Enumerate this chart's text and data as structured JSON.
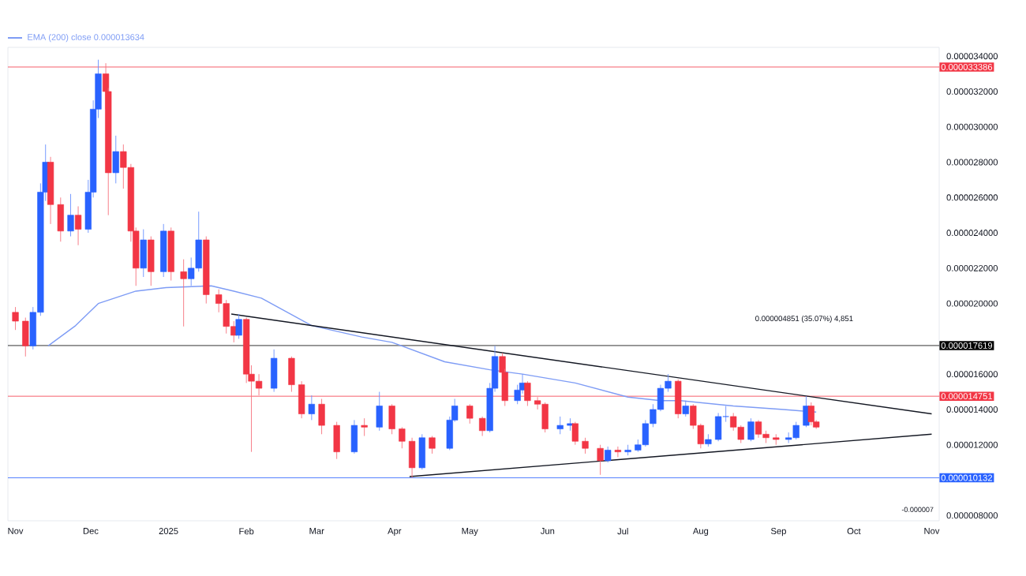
{
  "chart_data": {
    "type": "candlestick",
    "x": [
      "2024-11-01",
      "2024-11-05",
      "2024-11-08",
      "2024-11-11",
      "2024-11-13",
      "2024-11-15",
      "2024-11-19",
      "2024-11-23",
      "2024-11-26",
      "2024-11-30",
      "2024-12-02",
      "2024-12-04",
      "2024-12-07",
      "2024-12-08",
      "2024-12-11",
      "2024-12-14",
      "2024-12-17",
      "2024-12-19",
      "2024-12-22",
      "2024-12-25",
      "2024-12-30",
      "2025-01-02",
      "2025-01-07",
      "2025-01-10",
      "2025-01-13",
      "2025-01-16",
      "2025-01-21",
      "2025-01-24",
      "2025-01-27",
      "2025-01-29",
      "2025-02-01",
      "2025-02-03",
      "2025-02-06",
      "2025-02-12",
      "2025-02-19",
      "2025-02-23",
      "2025-02-27",
      "2025-03-03",
      "2025-03-09",
      "2025-03-16",
      "2025-03-20",
      "2025-03-26",
      "2025-03-31",
      "2025-04-04",
      "2025-04-08",
      "2025-04-12",
      "2025-04-16",
      "2025-04-23",
      "2025-04-25",
      "2025-05-01",
      "2025-05-06",
      "2025-05-09",
      "2025-05-11",
      "2025-05-14",
      "2025-05-15",
      "2025-05-20",
      "2025-05-22",
      "2025-05-24",
      "2025-05-28",
      "2025-05-31",
      "2025-06-06",
      "2025-06-10",
      "2025-06-12",
      "2025-06-16",
      "2025-06-22",
      "2025-06-25",
      "2025-06-29",
      "2025-07-03",
      "2025-07-07",
      "2025-07-10",
      "2025-07-13",
      "2025-07-16",
      "2025-07-19",
      "2025-07-23",
      "2025-07-26",
      "2025-07-29",
      "2025-08-01",
      "2025-08-04",
      "2025-08-08",
      "2025-08-11",
      "2025-08-14",
      "2025-08-17",
      "2025-08-21",
      "2025-08-24",
      "2025-08-27",
      "2025-08-31",
      "2025-09-05",
      "2025-09-08",
      "2025-09-12",
      "2025-09-14",
      "2025-09-16"
    ],
    "ohlc": [
      [
        1.95e-05,
        1.98e-05,
        1.85e-05,
        1.9e-05
      ],
      [
        1.9e-05,
        1.92e-05,
        1.7e-05,
        1.76e-05
      ],
      [
        1.76e-05,
        1.98e-05,
        1.74e-05,
        1.95e-05
      ],
      [
        1.95e-05,
        2.68e-05,
        1.93e-05,
        2.63e-05
      ],
      [
        2.63e-05,
        2.9e-05,
        2.58e-05,
        2.8e-05
      ],
      [
        2.8e-05,
        2.83e-05,
        2.45e-05,
        2.56e-05
      ],
      [
        2.56e-05,
        2.6e-05,
        2.35e-05,
        2.41e-05
      ],
      [
        2.41e-05,
        2.62e-05,
        2.38e-05,
        2.5e-05
      ],
      [
        2.5e-05,
        2.55e-05,
        2.33e-05,
        2.42e-05
      ],
      [
        2.42e-05,
        2.7e-05,
        2.4e-05,
        2.63e-05
      ],
      [
        2.63e-05,
        3.15e-05,
        2.6e-05,
        3.1e-05
      ],
      [
        3.1e-05,
        3.38e-05,
        3.05e-05,
        3.3e-05
      ],
      [
        3.3e-05,
        3.36e-05,
        3.1e-05,
        3.2e-05
      ],
      [
        3.2e-05,
        3.22e-05,
        2.5e-05,
        2.74e-05
      ],
      [
        2.74e-05,
        2.95e-05,
        2.68e-05,
        2.86e-05
      ],
      [
        2.86e-05,
        2.9e-05,
        2.65e-05,
        2.77e-05
      ],
      [
        2.77e-05,
        2.79e-05,
        2.35e-05,
        2.41e-05
      ],
      [
        2.41e-05,
        2.43e-05,
        2.1e-05,
        2.2e-05
      ],
      [
        2.2e-05,
        2.42e-05,
        2.15e-05,
        2.36e-05
      ],
      [
        2.36e-05,
        2.38e-05,
        2.1e-05,
        2.18e-05
      ],
      [
        2.18e-05,
        2.45e-05,
        2.15e-05,
        2.41e-05
      ],
      [
        2.41e-05,
        2.43e-05,
        2.13e-05,
        2.18e-05
      ],
      [
        2.18e-05,
        2.25e-05,
        1.87e-05,
        2.14e-05
      ],
      [
        2.14e-05,
        2.26e-05,
        2.1e-05,
        2.2e-05
      ],
      [
        2.2e-05,
        2.52e-05,
        2.18e-05,
        2.36e-05
      ],
      [
        2.36e-05,
        2.38e-05,
        2e-05,
        2.05e-05
      ],
      [
        2.05e-05,
        2.08e-05,
        1.95e-05,
        2e-05
      ],
      [
        2e-05,
        2.02e-05,
        1.83e-05,
        1.87e-05
      ],
      [
        1.87e-05,
        1.9e-05,
        1.78e-05,
        1.82e-05
      ],
      [
        1.82e-05,
        1.94e-05,
        1.8e-05,
        1.91e-05
      ],
      [
        1.91e-05,
        1.92e-05,
        1.55e-05,
        1.6e-05
      ],
      [
        1.6e-05,
        1.65e-05,
        1.16e-05,
        1.56e-05
      ],
      [
        1.56e-05,
        1.6e-05,
        1.48e-05,
        1.52e-05
      ],
      [
        1.52e-05,
        1.74e-05,
        1.5e-05,
        1.69e-05
      ],
      [
        1.69e-05,
        1.7e-05,
        1.5e-05,
        1.54e-05
      ],
      [
        1.54e-05,
        1.56e-05,
        1.35e-05,
        1.375e-05
      ],
      [
        1.375e-05,
        1.48e-05,
        1.34e-05,
        1.43e-05
      ],
      [
        1.43e-05,
        1.46e-05,
        1.26e-05,
        1.31e-05
      ],
      [
        1.31e-05,
        1.33e-05,
        1.12e-05,
        1.16e-05
      ],
      [
        1.16e-05,
        1.34e-05,
        1.15e-05,
        1.31e-05
      ],
      [
        1.31e-05,
        1.35e-05,
        1.25e-05,
        1.3e-05
      ],
      [
        1.3e-05,
        1.5e-05,
        1.28e-05,
        1.42e-05
      ],
      [
        1.42e-05,
        1.43e-05,
        1.26e-05,
        1.29e-05
      ],
      [
        1.29e-05,
        1.3e-05,
        1.18e-05,
        1.22e-05
      ],
      [
        1.22e-05,
        1.24e-05,
        1.013e-05,
        1.07e-05
      ],
      [
        1.07e-05,
        1.26e-05,
        1.06e-05,
        1.24e-05
      ],
      [
        1.24e-05,
        1.25e-05,
        1.15e-05,
        1.18e-05
      ],
      [
        1.18e-05,
        1.36e-05,
        1.17e-05,
        1.34e-05
      ],
      [
        1.34e-05,
        1.46e-05,
        1.33e-05,
        1.42e-05
      ],
      [
        1.42e-05,
        1.43e-05,
        1.32e-05,
        1.35e-05
      ],
      [
        1.35e-05,
        1.36e-05,
        1.25e-05,
        1.28e-05
      ],
      [
        1.28e-05,
        1.55e-05,
        1.27e-05,
        1.52e-05
      ],
      [
        1.52e-05,
        1.76e-05,
        1.5e-05,
        1.7e-05
      ],
      [
        1.7e-05,
        1.72e-05,
        1.58e-05,
        1.61e-05
      ],
      [
        1.61e-05,
        1.63e-05,
        1.42e-05,
        1.45e-05
      ],
      [
        1.45e-05,
        1.54e-05,
        1.43e-05,
        1.51e-05
      ],
      [
        1.51e-05,
        1.6e-05,
        1.49e-05,
        1.55e-05
      ],
      [
        1.55e-05,
        1.56e-05,
        1.42e-05,
        1.45e-05
      ],
      [
        1.45e-05,
        1.47e-05,
        1.4e-05,
        1.43e-05
      ],
      [
        1.43e-05,
        1.44e-05,
        1.27e-05,
        1.29e-05
      ],
      [
        1.29e-05,
        1.36e-05,
        1.26e-05,
        1.31e-05
      ],
      [
        1.31e-05,
        1.35e-05,
        1.28e-05,
        1.32e-05
      ],
      [
        1.32e-05,
        1.33e-05,
        1.2e-05,
        1.22e-05
      ],
      [
        1.22e-05,
        1.24e-05,
        1.15e-05,
        1.18e-05
      ],
      [
        1.18e-05,
        1.2e-05,
        1.03e-05,
        1.11e-05
      ],
      [
        1.11e-05,
        1.19e-05,
        1.1e-05,
        1.17e-05
      ],
      [
        1.17e-05,
        1.19e-05,
        1.13e-05,
        1.16e-05
      ],
      [
        1.16e-05,
        1.2e-05,
        1.14e-05,
        1.17e-05
      ],
      [
        1.17e-05,
        1.23e-05,
        1.16e-05,
        1.2e-05
      ],
      [
        1.2e-05,
        1.34e-05,
        1.19e-05,
        1.32e-05
      ],
      [
        1.32e-05,
        1.43e-05,
        1.3e-05,
        1.4e-05
      ],
      [
        1.4e-05,
        1.54e-05,
        1.39e-05,
        1.52e-05
      ],
      [
        1.52e-05,
        1.6e-05,
        1.5e-05,
        1.56e-05
      ],
      [
        1.56e-05,
        1.57e-05,
        1.35e-05,
        1.375e-05
      ],
      [
        1.375e-05,
        1.45e-05,
        1.36e-05,
        1.42e-05
      ],
      [
        1.42e-05,
        1.43e-05,
        1.29e-05,
        1.31e-05
      ],
      [
        1.31e-05,
        1.32e-05,
        1.18e-05,
        1.205e-05
      ],
      [
        1.205e-05,
        1.26e-05,
        1.19e-05,
        1.23e-05
      ],
      [
        1.23e-05,
        1.38e-05,
        1.22e-05,
        1.36e-05
      ],
      [
        1.36e-05,
        1.42e-05,
        1.33e-05,
        1.36e-05
      ],
      [
        1.36e-05,
        1.38e-05,
        1.28e-05,
        1.3e-05
      ],
      [
        1.3e-05,
        1.31e-05,
        1.21e-05,
        1.23e-05
      ],
      [
        1.23e-05,
        1.35e-05,
        1.22e-05,
        1.33e-05
      ],
      [
        1.33e-05,
        1.34e-05,
        1.24e-05,
        1.26e-05
      ],
      [
        1.26e-05,
        1.28e-05,
        1.21e-05,
        1.24e-05
      ],
      [
        1.24e-05,
        1.26e-05,
        1.2e-05,
        1.23e-05
      ],
      [
        1.23e-05,
        1.27e-05,
        1.21e-05,
        1.24e-05
      ],
      [
        1.24e-05,
        1.33e-05,
        1.23e-05,
        1.31e-05
      ],
      [
        1.31e-05,
        1.475e-05,
        1.3e-05,
        1.42e-05
      ],
      [
        1.42e-05,
        1.44e-05,
        1.31e-05,
        1.33e-05
      ],
      [
        1.33e-05,
        1.34e-05,
        1.29e-05,
        1.3e-05
      ]
    ],
    "colors": [
      "#f23645",
      "#f23645",
      "#2962ff",
      "#2962ff",
      "#2962ff",
      "#f23645",
      "#f23645",
      "#2962ff",
      "#f23645",
      "#2962ff",
      "#2962ff",
      "#2962ff",
      "#f23645",
      "#f23645",
      "#2962ff",
      "#f23645",
      "#f23645",
      "#f23645",
      "#2962ff",
      "#f23645",
      "#2962ff",
      "#f23645",
      "#f23645",
      "#2962ff",
      "#2962ff",
      "#f23645",
      "#f23645",
      "#f23645",
      "#f23645",
      "#2962ff",
      "#f23645",
      "#f23645",
      "#f23645",
      "#2962ff",
      "#f23645",
      "#f23645",
      "#2962ff",
      "#f23645",
      "#f23645",
      "#2962ff",
      "#f23645",
      "#2962ff",
      "#f23645",
      "#f23645",
      "#f23645",
      "#2962ff",
      "#f23645",
      "#2962ff",
      "#2962ff",
      "#f23645",
      "#f23645",
      "#2962ff",
      "#2962ff",
      "#f23645",
      "#f23645",
      "#2962ff",
      "#2962ff",
      "#f23645",
      "#f23645",
      "#f23645",
      "#2962ff",
      "#2962ff",
      "#f23645",
      "#f23645",
      "#f23645",
      "#2962ff",
      "#f23645",
      "#2962ff",
      "#2962ff",
      "#2962ff",
      "#2962ff",
      "#2962ff",
      "#2962ff",
      "#f23645",
      "#2962ff",
      "#f23645",
      "#f23645",
      "#2962ff",
      "#2962ff",
      "#2962ff",
      "#f23645",
      "#f23645",
      "#2962ff",
      "#f23645",
      "#f23645",
      "#f23645",
      "#2962ff",
      "#2962ff",
      "#2962ff",
      "#f23645",
      "#f23645"
    ],
    "series": [
      {
        "type": "line",
        "name": "EMA (200) close 0.000013634",
        "color": "#7e9cf5",
        "x": [
          "2024-11-14",
          "2024-11-25",
          "2024-12-04",
          "2024-12-19",
          "2024-12-31",
          "2025-01-18",
          "2025-01-27",
          "2025-02-07",
          "2025-02-27",
          "2025-03-19",
          "2025-03-31",
          "2025-04-21",
          "2025-05-09",
          "2025-05-22",
          "2025-06-12",
          "2025-07-03",
          "2025-07-16",
          "2025-07-24",
          "2025-08-14",
          "2025-09-03",
          "2025-09-16"
        ],
        "values": [
          1.76e-05,
          1.875e-05,
          2e-05,
          2.07e-05,
          2.09e-05,
          2.1e-05,
          2.07e-05,
          2.03e-05,
          1.875e-05,
          1.81e-05,
          1.78e-05,
          1.67e-05,
          1.625e-05,
          1.6e-05,
          1.55e-05,
          1.47e-05,
          1.45e-05,
          1.45e-05,
          1.42e-05,
          1.4e-05,
          1.385e-05
        ]
      },
      {
        "type": "line",
        "color": "#131722",
        "x": [
          "2025-01-26",
          "2025-11-01"
        ],
        "values": [
          1.94e-05,
          1.375e-05
        ]
      },
      {
        "type": "line",
        "color": "#131722",
        "x": [
          "2025-04-07",
          "2025-11-01"
        ],
        "values": [
          1.02e-05,
          1.26e-05
        ]
      }
    ],
    "xlim": [
      "2024-10-29",
      "2025-11-04"
    ],
    "xticks": [
      {
        "value": "2024-11-01",
        "label": "Nov"
      },
      {
        "value": "2024-12-01",
        "label": "Dec"
      },
      {
        "value": "2025-01-01",
        "label": "2025"
      },
      {
        "value": "2025-02-01",
        "label": "Feb"
      },
      {
        "value": "2025-03-01",
        "label": "Mar"
      },
      {
        "value": "2025-04-01",
        "label": "Apr"
      },
      {
        "value": "2025-05-01",
        "label": "May"
      },
      {
        "value": "2025-06-01",
        "label": "Jun"
      },
      {
        "value": "2025-07-01",
        "label": "Jul"
      },
      {
        "value": "2025-08-01",
        "label": "Aug"
      },
      {
        "value": "2025-09-01",
        "label": "Sep"
      },
      {
        "value": "2025-10-01",
        "label": "Oct"
      },
      {
        "value": "2025-11-01",
        "label": "Nov"
      }
    ],
    "ylim": [
      7.7e-06,
      3.45e-05
    ],
    "yticks": [
      {
        "value": 8e-06,
        "label": "0.000008000"
      },
      {
        "value": 1.2e-05,
        "label": "0.000012000"
      },
      {
        "value": 1.4e-05,
        "label": "0.000014000"
      },
      {
        "value": 1.6e-05,
        "label": "0.000016000"
      },
      {
        "value": 2e-05,
        "label": "0.000020000"
      },
      {
        "value": 2.2e-05,
        "label": "0.000022000"
      },
      {
        "value": 2.4e-05,
        "label": "0.000024000"
      },
      {
        "value": 2.6e-05,
        "label": "0.000026000"
      },
      {
        "value": 2.8e-05,
        "label": "0.000028000"
      },
      {
        "value": 3e-05,
        "label": "0.000030000"
      },
      {
        "value": 3.2e-05,
        "label": "0.000032000"
      },
      {
        "value": 3.4e-05,
        "label": "0.000034000"
      }
    ],
    "ref_lines": [
      {
        "axis": "y",
        "value": 3.3386e-05,
        "label": "0.000033386",
        "color": "#f23645"
      },
      {
        "axis": "y",
        "value": 1.7619e-05,
        "label": "0.000017619",
        "color": "#000000"
      },
      {
        "axis": "y",
        "value": 1.4751e-05,
        "label": "0.000014751",
        "color": "#f23645"
      },
      {
        "axis": "y",
        "value": 1.0132e-05,
        "label": "0.000010132",
        "color": "#2962ff"
      }
    ],
    "annotations": [
      "0.000004851 (35.07%) 4,851",
      "-0.000007"
    ],
    "legend": "top left"
  }
}
